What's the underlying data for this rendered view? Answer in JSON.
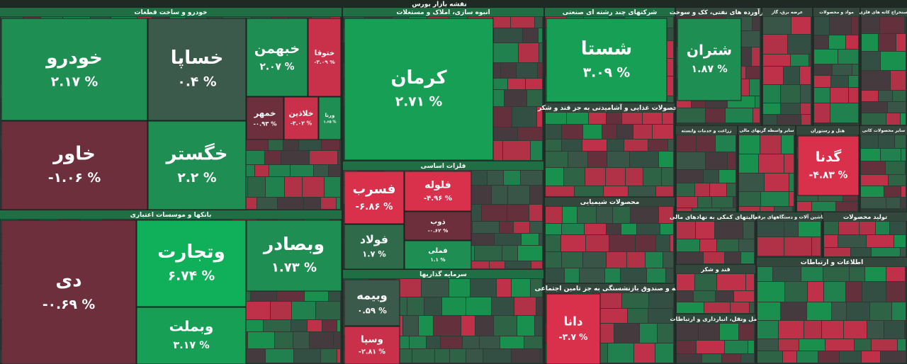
{
  "chart_data": {
    "type": "treemap",
    "title": "نقشه بازار بورس",
    "groups": [
      {
        "name": "خودرو و ساخت قطعات",
        "tiles": [
          {
            "name": "خودرو",
            "value": 2.17,
            "value_label": "۲.۱۷ %",
            "color": "#1e8e53"
          },
          {
            "name": "خساپا",
            "value": 0.4,
            "value_label": "۰.۴ %",
            "color": "#3c5a4b"
          },
          {
            "name": "خاور",
            "value": -1.06,
            "value_label": "-۱.۰۶ %",
            "color": "#6e2f3d"
          },
          {
            "name": "خگستر",
            "value": 2.2,
            "value_label": "۲.۲ %",
            "color": "#1e8e53"
          },
          {
            "name": "خبهمن",
            "value": 2.07,
            "value_label": "۲.۰۷ %",
            "color": "#1e8e53"
          },
          {
            "name": "ختوقا",
            "value": -3.09,
            "value_label": "-۳.۰۹ %",
            "color": "#c9314b"
          },
          {
            "name": "خمهر",
            "value": -0.93,
            "value_label": "-۰.۹۳ %",
            "color": "#6e2f3d"
          },
          {
            "name": "خلاذین",
            "value": -3.02,
            "value_label": "-۳.۰۲ %",
            "color": "#c9314b"
          },
          {
            "name": "ورنا",
            "value": 1.65,
            "value_label": "۱.۶۵ %",
            "color": "#1e8e53"
          }
        ]
      },
      {
        "name": "بانکها و موسسات اعتباری",
        "tiles": [
          {
            "name": "دی",
            "value": -0.69,
            "value_label": "-۰.۶۹ %",
            "color": "#6e2f3d"
          },
          {
            "name": "وتجارت",
            "value": 6.74,
            "value_label": "۶.۷۴ %",
            "color": "#10b05a"
          },
          {
            "name": "وبملت",
            "value": 3.17,
            "value_label": "۳.۱۷ %",
            "color": "#17a055"
          },
          {
            "name": "وبصادر",
            "value": 1.73,
            "value_label": "۱.۷۳ %",
            "color": "#1e8e53"
          }
        ]
      },
      {
        "name": "انبوه سازی، املاک و مستغلات",
        "tiles": [
          {
            "name": "کرمان",
            "value": 2.71,
            "value_label": "۲.۷۱ %",
            "color": "#17a055"
          }
        ]
      },
      {
        "name": "فلزات اساسی",
        "tiles": [
          {
            "name": "فسرب",
            "value": -6.86,
            "value_label": "-۶.۸۶ %",
            "color": "#d9304c"
          },
          {
            "name": "فولاد",
            "value": 1.7,
            "value_label": "۱.۷ %",
            "color": "#2f6b4a"
          },
          {
            "name": "فلوله",
            "value": -4.96,
            "value_label": "-۴.۹۶ %",
            "color": "#d9304c"
          },
          {
            "name": "ذوب",
            "value": -0.62,
            "value_label": "-۰.۶۲ %",
            "color": "#6e2f3d"
          },
          {
            "name": "فملی",
            "value": 1.1,
            "value_label": "۱.۱ %",
            "color": "#1e8e53"
          }
        ]
      },
      {
        "name": "سرمایه گذاریها",
        "tiles": [
          {
            "name": "وبیمه",
            "value": 0.59,
            "value_label": "۰.۵۹ %",
            "color": "#3c5a4b"
          },
          {
            "name": "وسپا",
            "value": -2.81,
            "value_label": "-۲.۸۱ %",
            "color": "#c9314b"
          }
        ]
      },
      {
        "name": "شرکتهای چند رشته ای صنعتی",
        "tiles": [
          {
            "name": "شستا",
            "value": 3.09,
            "value_label": "۳.۰۹ %",
            "color": "#17a055"
          }
        ]
      },
      {
        "name": "محصولات غذایی و آشامیدنی به جز قند و شکر",
        "tiles": []
      },
      {
        "name": "محصولات شیمیایی",
        "tiles": []
      },
      {
        "name": "بیمه و صندوق بازنشستگی به جز تامین اجتماعی",
        "tiles": [
          {
            "name": "دانا",
            "value": -3.7,
            "value_label": "-۳.۷ %",
            "color": "#d9304c"
          }
        ]
      },
      {
        "name": "فرآورده های نفتی، کک و سوخت",
        "tiles": [
          {
            "name": "شتران",
            "value": 1.87,
            "value_label": "۱.۸۷ %",
            "color": "#1e8e53"
          }
        ]
      },
      {
        "name": "عرضه برق، گاز",
        "tiles": []
      },
      {
        "name": "مواد و محصولات",
        "tiles": []
      },
      {
        "name": "استخراج کانه های فلزی",
        "tiles": []
      },
      {
        "name": "زراعت و خدمات وابسته",
        "tiles": []
      },
      {
        "name": "سایر واسطه گریهای مالی",
        "tiles": []
      },
      {
        "name": "هتل و رستوران",
        "tiles": [
          {
            "name": "گدنا",
            "value": -4.83,
            "value_label": "-۴.۸۳ %",
            "color": "#d9304c"
          }
        ]
      },
      {
        "name": "سایر محصولات کانی",
        "tiles": []
      },
      {
        "name": "فعالیتهای کمکی به نهادهای مالی",
        "tiles": []
      },
      {
        "name": "قند و شکر",
        "tiles": []
      },
      {
        "name": "حمل ونقل، انبارداری و ارتباطات",
        "tiles": []
      },
      {
        "name": "ماشین آلات و دستگاههای برقی",
        "tiles": []
      },
      {
        "name": "تولید محصولات",
        "tiles": []
      },
      {
        "name": "اطلاعات و ارتباطات",
        "tiles": []
      }
    ]
  }
}
